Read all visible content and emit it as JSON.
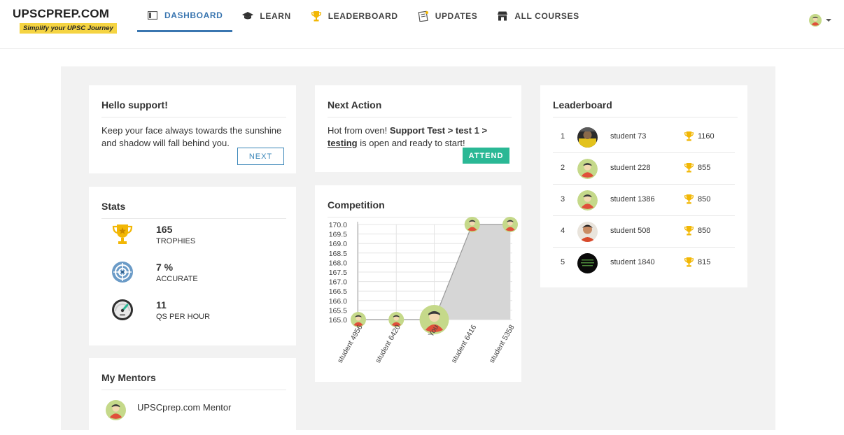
{
  "brand": {
    "title": "UPSCPREP.COM",
    "tagline": "Simplify your UPSC Journey"
  },
  "nav": {
    "items": [
      {
        "label": "DASHBOARD",
        "icon": "dashboard-icon",
        "active": true
      },
      {
        "label": "LEARN",
        "icon": "graduation-cap-icon",
        "active": false
      },
      {
        "label": "LEADERBOARD",
        "icon": "trophy-icon",
        "active": false
      },
      {
        "label": "UPDATES",
        "icon": "updates-icon",
        "active": false
      },
      {
        "label": "ALL COURSES",
        "icon": "store-icon",
        "active": false
      }
    ]
  },
  "greeting": {
    "title": "Hello support!",
    "quote": "Keep your face always towards the sunshine and shadow will fall behind you.",
    "button": "NEXT"
  },
  "next_action": {
    "title": "Next Action",
    "prefix": "Hot from oven!",
    "course": "Support Test > test 1 >",
    "link": "testing",
    "suffix": "is open and ready to start!",
    "button": "ATTEND"
  },
  "stats": {
    "title": "Stats",
    "items": [
      {
        "value": "165",
        "label": "TROPHIES",
        "icon": "trophy-icon"
      },
      {
        "value": "7 %",
        "label": "ACCURATE",
        "icon": "target-icon"
      },
      {
        "value": "11",
        "label": "QS PER HOUR",
        "icon": "speedometer-icon"
      }
    ]
  },
  "mentors": {
    "title": "My Mentors",
    "items": [
      {
        "name": "UPSCprep.com Mentor"
      }
    ]
  },
  "competition": {
    "title": "Competition"
  },
  "chart_data": {
    "type": "area",
    "title": "Competition",
    "categories": [
      "student 4956",
      "student 6420",
      "You",
      "student 6416",
      "student 5358"
    ],
    "values": [
      165,
      165,
      165,
      170,
      170
    ],
    "highlight_index": 2,
    "ylim": [
      165,
      170
    ],
    "yticks": [
      "165.0",
      "165.5",
      "166.0",
      "166.5",
      "167.0",
      "167.5",
      "168.0",
      "168.5",
      "169.0",
      "169.5",
      "170.0"
    ],
    "xlabel": "",
    "ylabel": "",
    "grid": true,
    "colors": {
      "fill": "#d6d6d6",
      "line": "#999999",
      "grid": "#e4e4e4"
    }
  },
  "leaderboard": {
    "title": "Leaderboard",
    "rows": [
      {
        "rank": "1",
        "name": "student 73",
        "score": "1160",
        "avatar": "photo-yellow"
      },
      {
        "rank": "2",
        "name": "student 228",
        "score": "855",
        "avatar": "default"
      },
      {
        "rank": "3",
        "name": "student 1386",
        "score": "850",
        "avatar": "default"
      },
      {
        "rank": "4",
        "name": "student 508",
        "score": "850",
        "avatar": "photo-person"
      },
      {
        "rank": "5",
        "name": "student 1840",
        "score": "815",
        "avatar": "photo-dark"
      }
    ]
  },
  "colors": {
    "accent": "#3a76b0",
    "green": "#2ab895",
    "avatar_bg": "#c5d98a",
    "avatar_body": "#e0503a",
    "trophy": "#f2b705"
  }
}
